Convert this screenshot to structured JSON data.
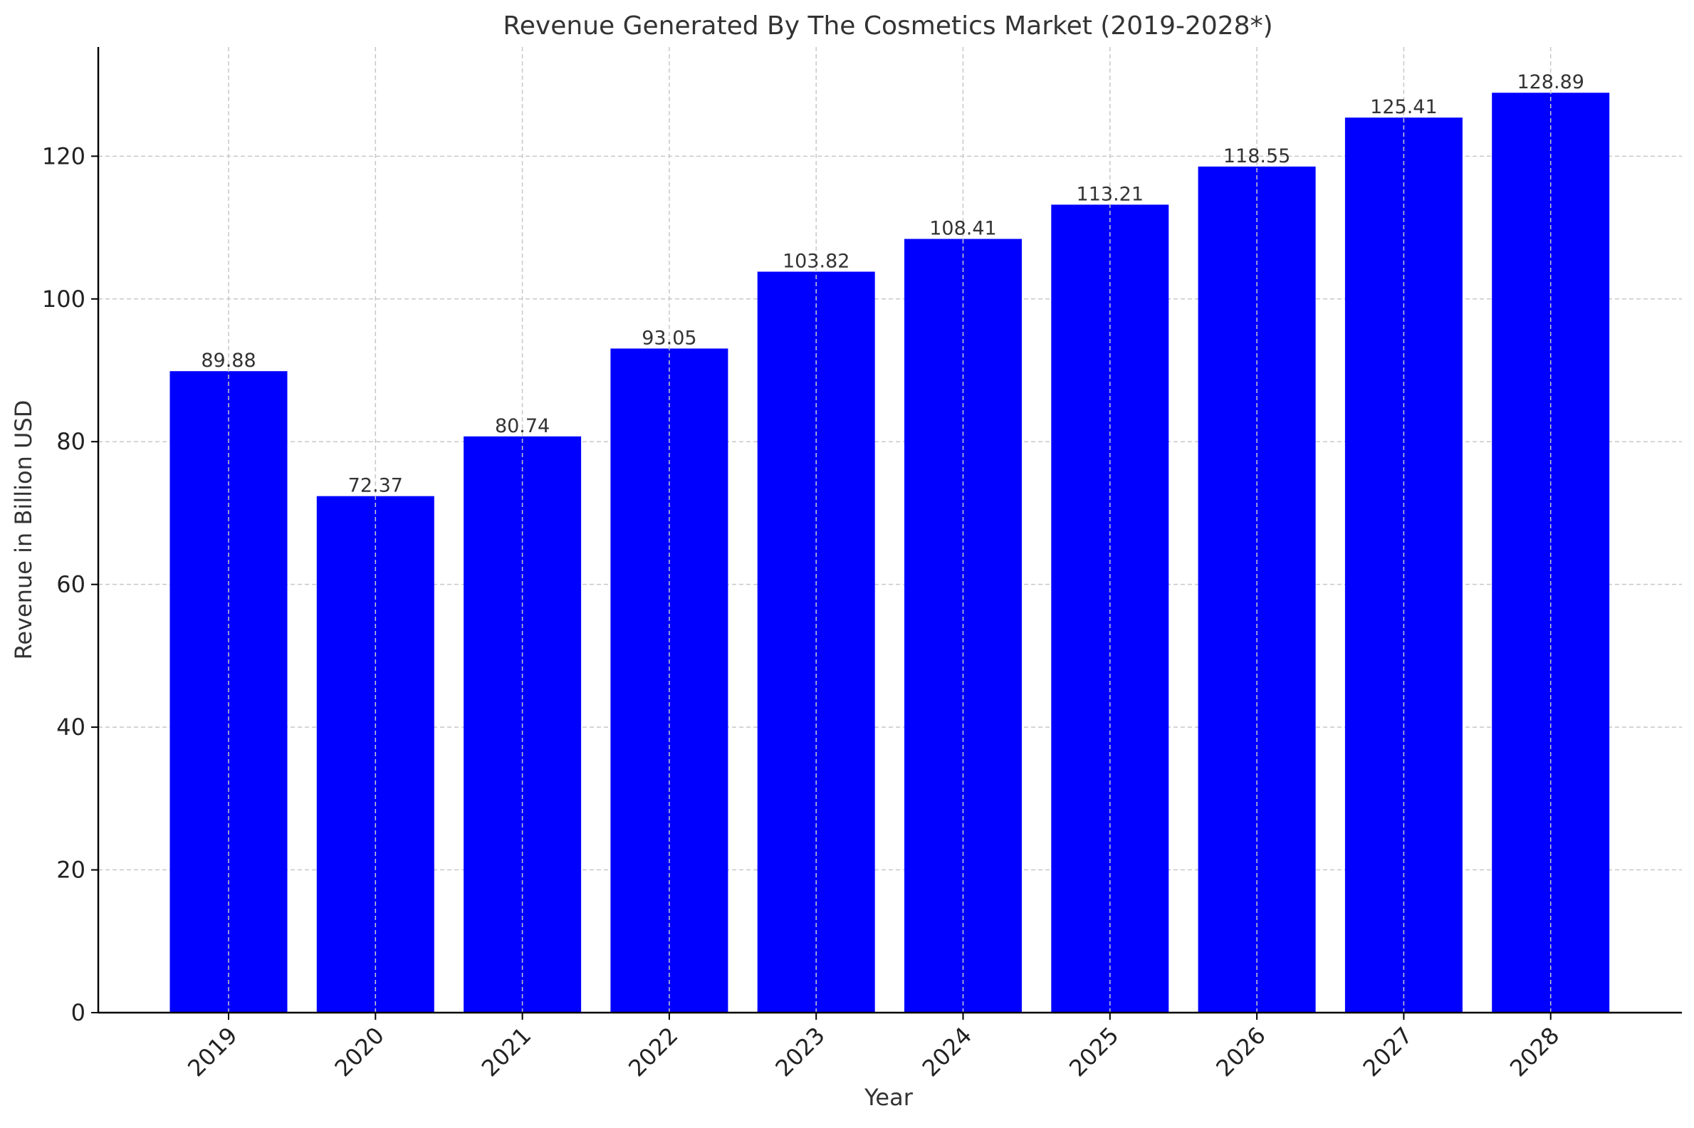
{
  "chart_data": {
    "type": "bar",
    "title": "Revenue Generated By The Cosmetics Market (2019-2028*)",
    "xlabel": "Year",
    "ylabel": "Revenue in Billion USD",
    "categories": [
      "2019",
      "2020",
      "2021",
      "2022",
      "2023",
      "2024",
      "2025",
      "2026",
      "2027",
      "2028"
    ],
    "values": [
      89.88,
      72.37,
      80.74,
      93.05,
      103.82,
      108.41,
      113.21,
      118.55,
      125.41,
      128.89
    ],
    "value_labels": [
      "89.88",
      "72.37",
      "80.74",
      "93.05",
      "103.82",
      "108.41",
      "113.21",
      "118.55",
      "125.41",
      "128.89"
    ],
    "yticks": [
      0,
      20,
      40,
      60,
      80,
      100,
      120
    ],
    "ylim": [
      0,
      135.3
    ],
    "grid": true,
    "bar_color": "#0000ff",
    "grid_color": "#c8c8c8",
    "text_color": "#333333"
  }
}
